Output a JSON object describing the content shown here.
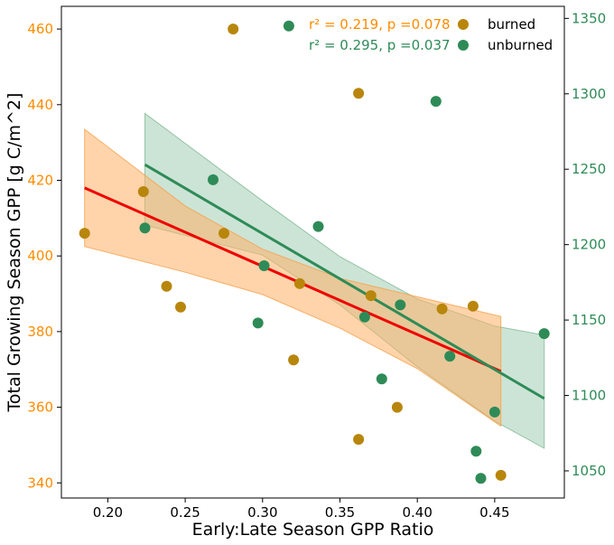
{
  "chart_data": {
    "type": "scatter",
    "xlabel": "Early:Late Season GPP Ratio",
    "ylabel": "Total Growing Season GPP [g C/m^2]",
    "xlim": [
      0.17,
      0.495
    ],
    "ylim_left": [
      336,
      466
    ],
    "ylim_right": [
      1032,
      1358
    ],
    "x_ticks": [
      "0.20",
      "0.25",
      "0.30",
      "0.35",
      "0.40",
      "0.45"
    ],
    "y_ticks_left": [
      "340",
      "360",
      "380",
      "400",
      "420",
      "440",
      "460"
    ],
    "y_ticks_right": [
      "1050",
      "1100",
      "1150",
      "1200",
      "1250",
      "1300",
      "1350"
    ],
    "colors": {
      "burned_points": "#b8860b",
      "burned_line": "#ee0000",
      "burned_band": "#ffb066",
      "unburned_points": "#2e8b57",
      "unburned_line": "#2e8b57",
      "unburned_band": "#8fc3a3",
      "left_axis": "#ff8c00",
      "right_axis": "#2e8b57"
    },
    "legend": {
      "position": "top-right"
    },
    "annotations": {
      "burned_stats": "r² = 0.219, p =0.078",
      "unburned_stats": "r² = 0.295, p =0.037"
    },
    "series": [
      {
        "name": "burned",
        "axis": "left",
        "points": [
          [
            0.185,
            406
          ],
          [
            0.223,
            417
          ],
          [
            0.238,
            392
          ],
          [
            0.247,
            386.5
          ],
          [
            0.275,
            406
          ],
          [
            0.281,
            460
          ],
          [
            0.32,
            372.5
          ],
          [
            0.324,
            392.7
          ],
          [
            0.362,
            443
          ],
          [
            0.362,
            351.5
          ],
          [
            0.37,
            389.5
          ],
          [
            0.387,
            360
          ],
          [
            0.416,
            386
          ],
          [
            0.436,
            386.7
          ],
          [
            0.454,
            342
          ]
        ],
        "fit": {
          "x": [
            0.185,
            0.454
          ],
          "y": [
            418,
            369.5
          ]
        },
        "band": {
          "x": [
            0.185,
            0.25,
            0.3,
            0.35,
            0.4,
            0.454
          ],
          "upper": [
            433.5,
            413.2,
            401.8,
            394.1,
            389.2,
            384
          ],
          "lower": [
            402.5,
            395.7,
            389.8,
            380.9,
            370.2,
            355
          ]
        }
      },
      {
        "name": "unburned",
        "axis": "right",
        "points": [
          [
            0.224,
            1211
          ],
          [
            0.268,
            1243
          ],
          [
            0.297,
            1148
          ],
          [
            0.301,
            1186
          ],
          [
            0.317,
            1345
          ],
          [
            0.336,
            1212
          ],
          [
            0.366,
            1152
          ],
          [
            0.377,
            1111
          ],
          [
            0.389,
            1160
          ],
          [
            0.412,
            1295
          ],
          [
            0.421,
            1126
          ],
          [
            0.438,
            1063
          ],
          [
            0.441,
            1045
          ],
          [
            0.45,
            1089
          ],
          [
            0.482,
            1141
          ]
        ],
        "fit": {
          "x": [
            0.224,
            0.482
          ],
          "y": [
            1253,
            1098
          ]
        },
        "band": {
          "x": [
            0.224,
            0.3,
            0.35,
            0.4,
            0.45,
            0.482
          ],
          "upper": [
            1287,
            1229,
            1192,
            1164,
            1146,
            1140
          ],
          "lower": [
            1213,
            1193,
            1160,
            1119,
            1083,
            1065
          ]
        }
      }
    ]
  }
}
